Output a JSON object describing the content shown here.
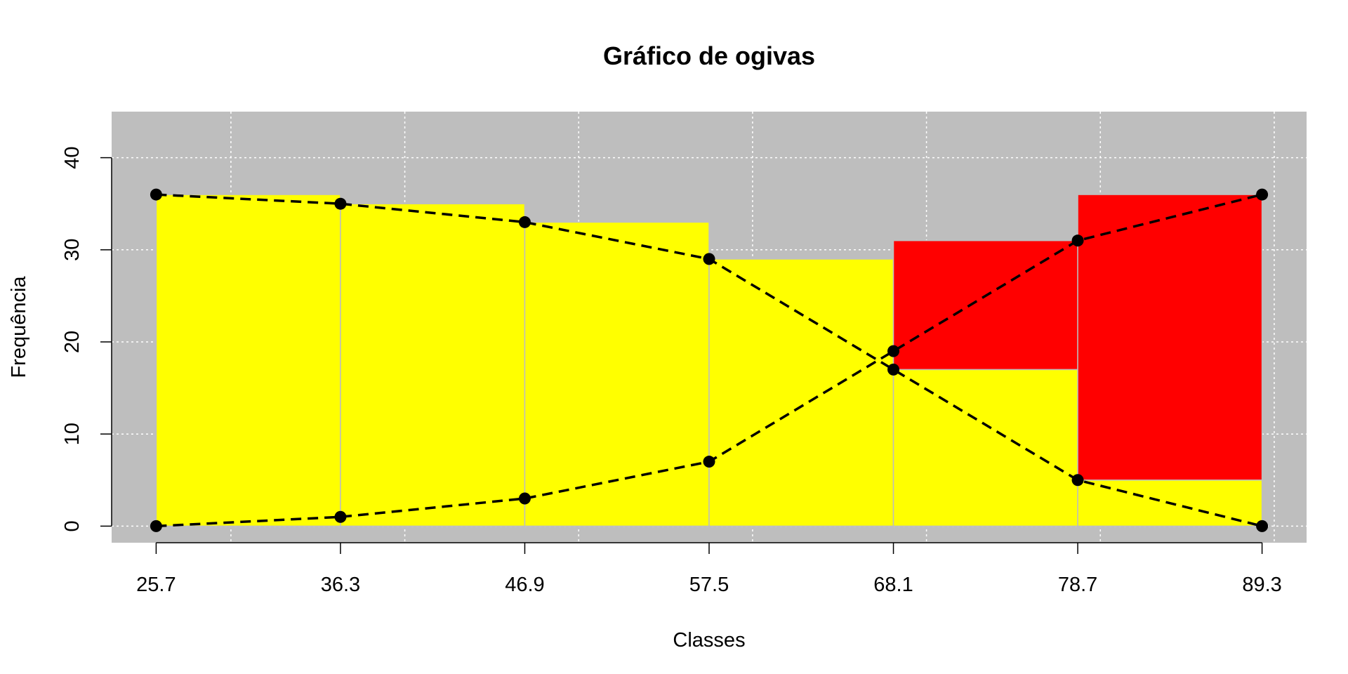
{
  "chart_data": {
    "type": "bar",
    "title": "Gráfico de ogivas",
    "xlabel": "Classes",
    "ylabel": "Frequência",
    "x_ticks": [
      "25.7",
      "36.3",
      "46.9",
      "57.5",
      "68.1",
      "78.7",
      "89.3"
    ],
    "x_breaks": [
      25.7,
      36.3,
      46.9,
      57.5,
      68.1,
      78.7,
      89.3
    ],
    "y_ticks": [
      0,
      10,
      20,
      30,
      40
    ],
    "xlim": [
      23.14,
      91.86
    ],
    "ylim": [
      -1.8,
      45.0
    ],
    "grid": true,
    "colors": {
      "panel_background": "#bebebe",
      "grid": "#ffffff",
      "bar_yellow": "#ffff00",
      "bar_red": "#ff0000",
      "bar_border": "#bebebe",
      "line": "#000000"
    },
    "bars": [
      {
        "x0": 25.7,
        "x1": 36.3,
        "yellow": 36,
        "red_from": null,
        "red_to": null
      },
      {
        "x0": 36.3,
        "x1": 46.9,
        "yellow": 35,
        "red_from": null,
        "red_to": null
      },
      {
        "x0": 46.9,
        "x1": 57.5,
        "yellow": 33,
        "red_from": null,
        "red_to": null
      },
      {
        "x0": 57.5,
        "x1": 68.1,
        "yellow": 29,
        "red_from": null,
        "red_to": null
      },
      {
        "x0": 68.1,
        "x1": 78.7,
        "yellow": 17,
        "red_from": 17,
        "red_to": 31
      },
      {
        "x0": 78.7,
        "x1": 89.3,
        "yellow": 5,
        "red_from": 5,
        "red_to": 36
      }
    ],
    "series": [
      {
        "x": [
          25.7,
          36.3,
          46.9,
          57.5,
          68.1,
          78.7,
          89.3
        ],
        "values": [
          0,
          1,
          3,
          7,
          19,
          31,
          36
        ]
      },
      {
        "x": [
          25.7,
          36.3,
          46.9,
          57.5,
          68.1,
          78.7,
          89.3
        ],
        "values": [
          36,
          35,
          33,
          29,
          17,
          5,
          0
        ]
      }
    ]
  }
}
